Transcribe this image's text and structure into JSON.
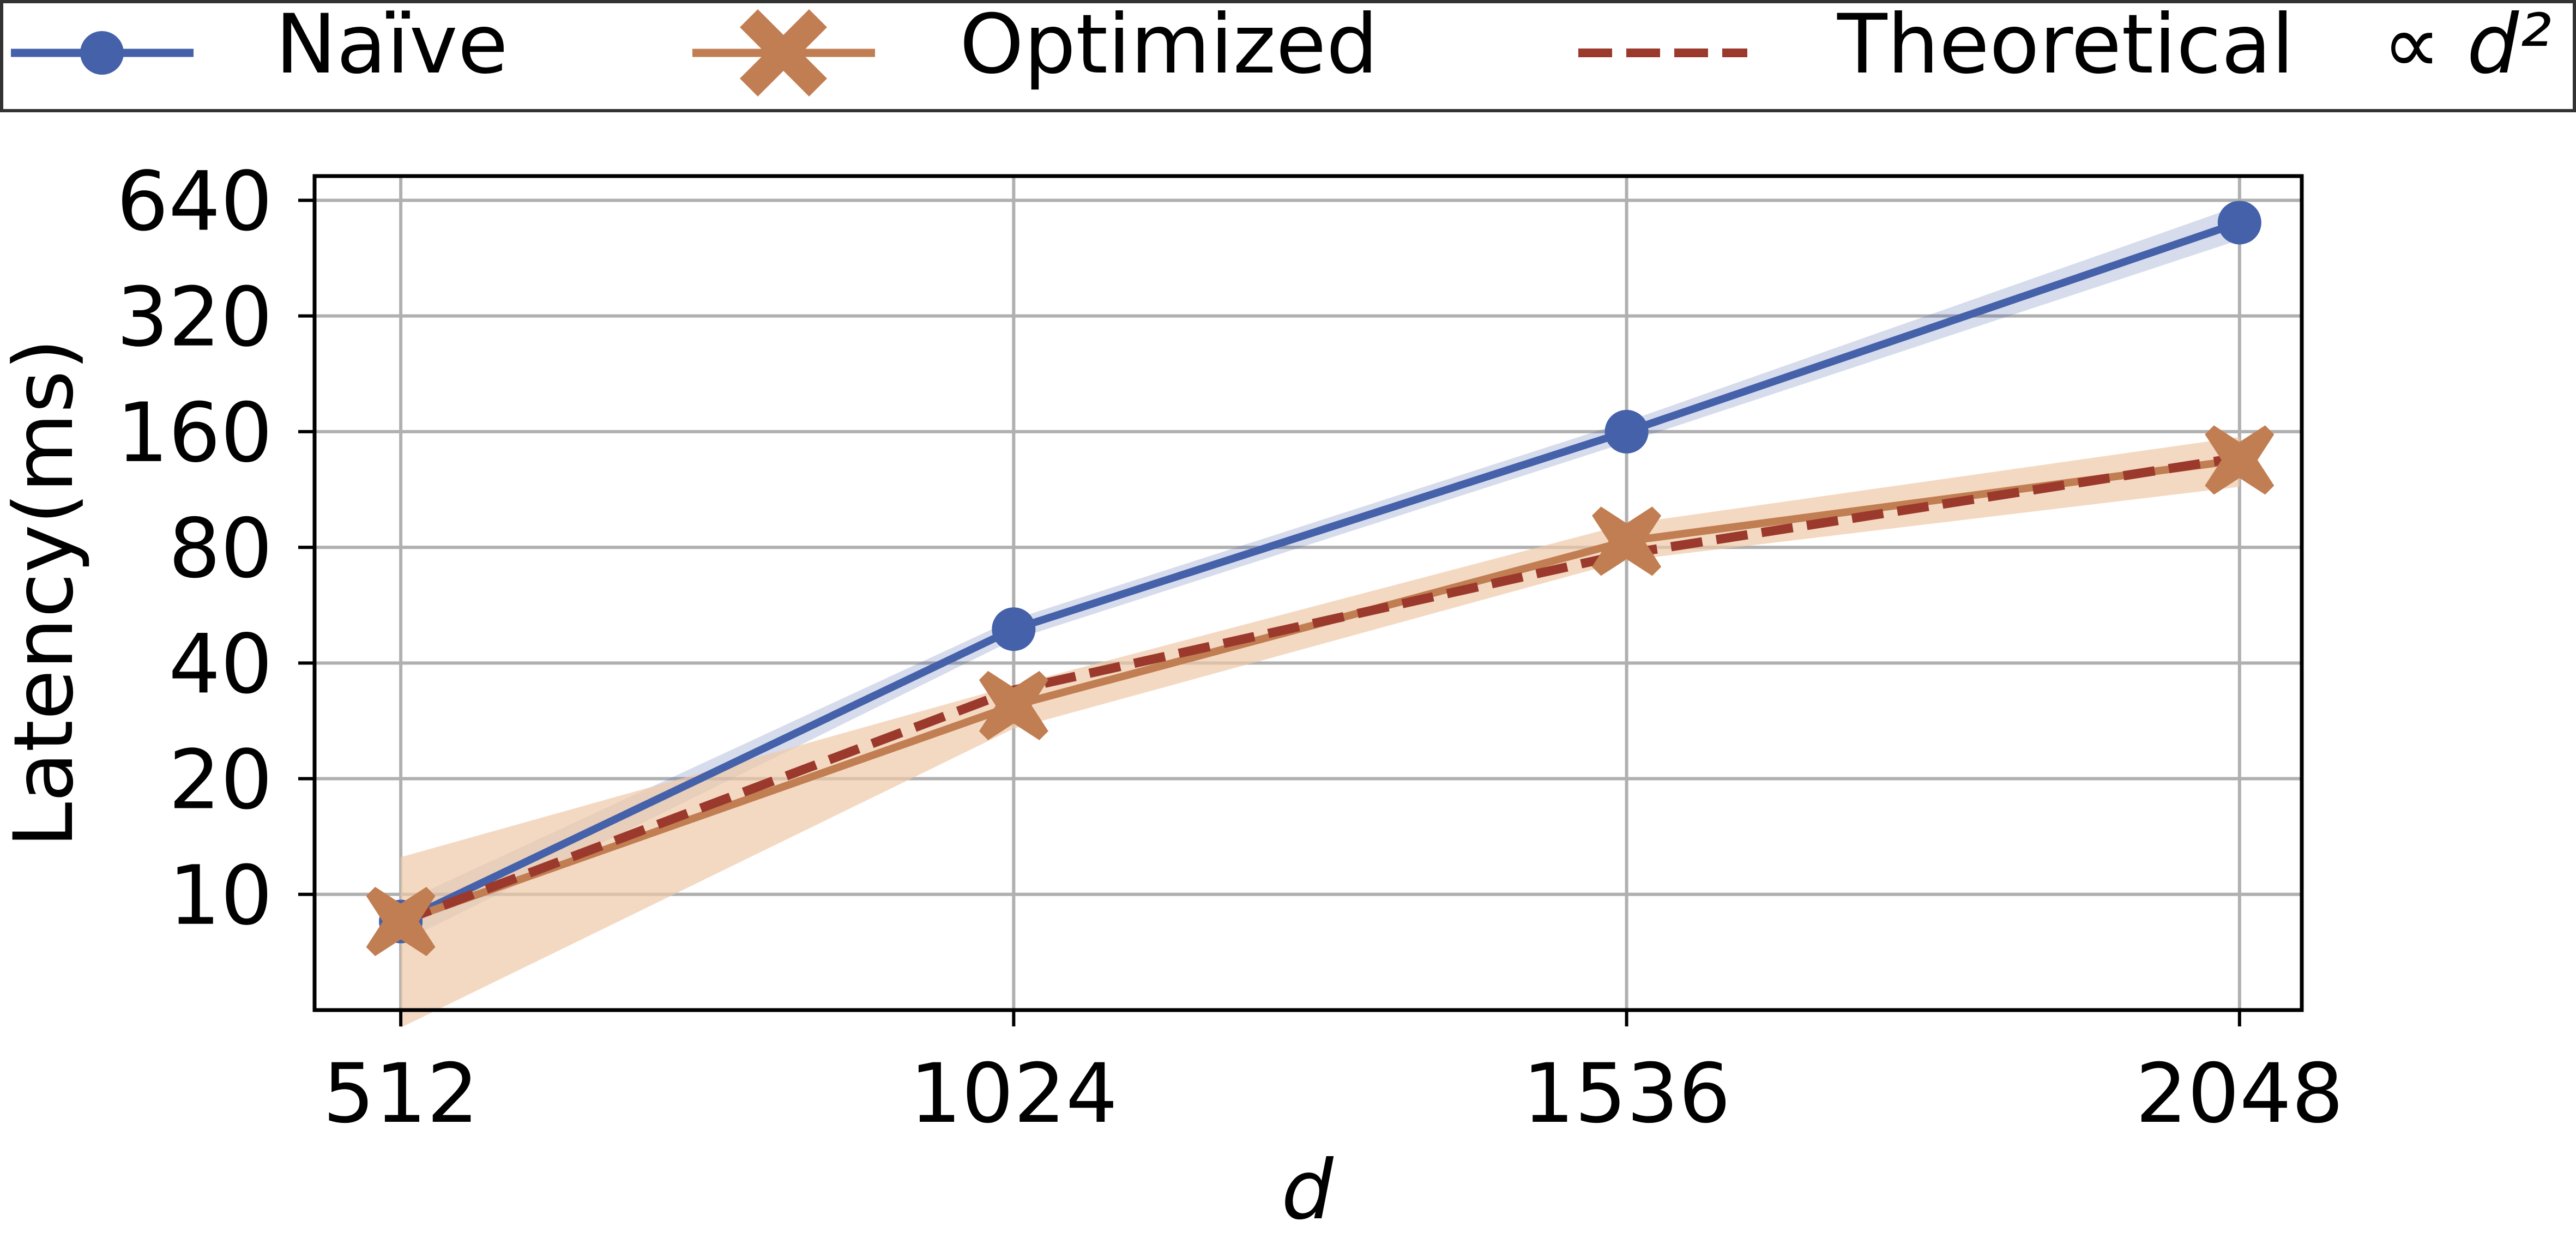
{
  "chart_data": {
    "type": "line",
    "xlabel": "d",
    "ylabel": "Latency(ms)",
    "y_scale": "log2",
    "xlim": [
      440,
      2100
    ],
    "ylim": [
      5,
      740
    ],
    "x_ticks": [
      "512",
      "1024",
      "1536",
      "2048"
    ],
    "y_ticks": [
      "10",
      "20",
      "40",
      "80",
      "160",
      "320",
      "640"
    ],
    "grid": true,
    "legend": {
      "placement": "top, outside plot area",
      "theoretical_label": "Theoretical",
      "theoretical_formula": "∝ d²"
    },
    "x": [
      512,
      1024,
      1536,
      2048
    ],
    "series": [
      {
        "name": "Naïve",
        "values": [
          8.5,
          49,
          160,
          560
        ],
        "band_low": [
          7.5,
          46,
          150,
          505
        ],
        "band_high": [
          9.5,
          52,
          170,
          620
        ],
        "color": "#4461a9",
        "marker": "circle"
      },
      {
        "name": "Optimized",
        "values": [
          8.5,
          31,
          83,
          135
        ],
        "band_low": [
          4.5,
          27,
          74,
          115
        ],
        "band_high": [
          12.5,
          35,
          92,
          155
        ],
        "color": "#c17e52",
        "band_color": "#f0c9a8",
        "marker": "X"
      },
      {
        "name": "Theoretical ∝ d²",
        "values": [
          8.5,
          34,
          77,
          137
        ],
        "color": "#9b3a2c",
        "dashed": true
      }
    ]
  }
}
